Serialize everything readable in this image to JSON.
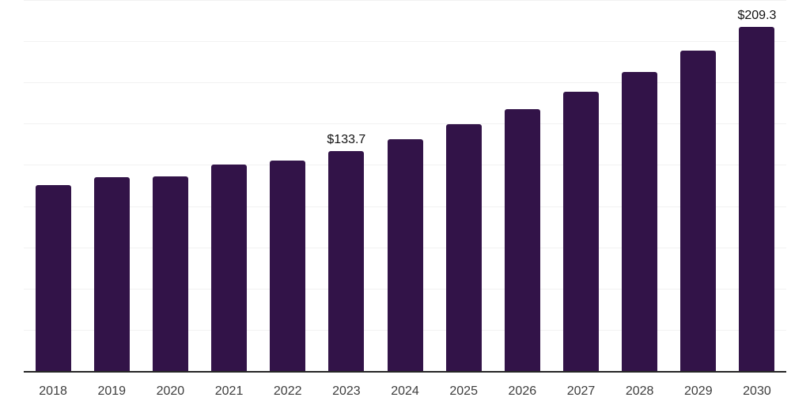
{
  "colors": {
    "background": "#ffffff",
    "bar": "#321348",
    "axis_line": "#262626",
    "gridline": "#f2f2f2",
    "tick_label": "#3d3d3d",
    "data_label": "#111111"
  },
  "chart_data": {
    "type": "bar",
    "title": "",
    "xlabel": "",
    "ylabel": "",
    "categories": [
      "2018",
      "2019",
      "2020",
      "2021",
      "2022",
      "2023",
      "2024",
      "2025",
      "2026",
      "2027",
      "2028",
      "2029",
      "2030"
    ],
    "values": [
      113.4,
      118.2,
      118.7,
      125.8,
      128.2,
      133.7,
      141.2,
      150.2,
      159.3,
      170.0,
      182.0,
      194.8,
      209.3
    ],
    "data_labels": [
      "",
      "",
      "",
      "",
      "",
      "$133.7",
      "",
      "",
      "",
      "",
      "",
      "",
      "$209.3"
    ],
    "ylim": [
      0,
      225
    ],
    "grid_step": 25,
    "grid": "horizontal-only",
    "legend": "none",
    "y_axis_ticks_visible": false,
    "bar_corner": "rounded-top"
  }
}
